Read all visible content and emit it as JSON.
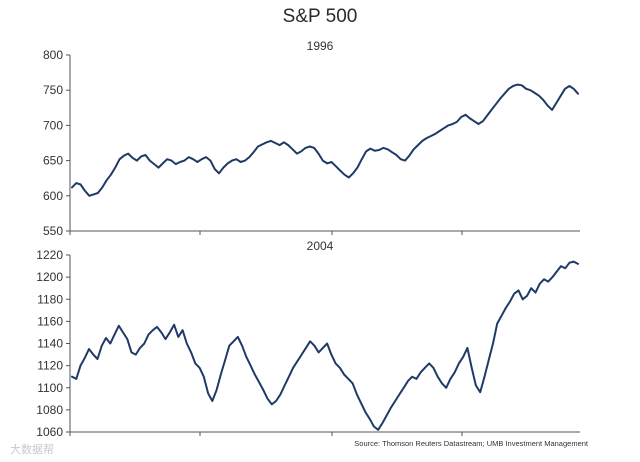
{
  "chart_data": [
    {
      "type": "line",
      "title": "S&P 500",
      "subtitle": "1996",
      "ylim": [
        550,
        800
      ],
      "yticks": [
        550,
        600,
        650,
        700,
        750,
        800
      ],
      "series": [
        {
          "name": "S&P 500 1996",
          "color": "#1f3a66",
          "values": [
            612,
            618,
            616,
            607,
            600,
            602,
            604,
            612,
            622,
            630,
            640,
            652,
            657,
            660,
            654,
            650,
            656,
            658,
            650,
            645,
            640,
            646,
            652,
            650,
            645,
            648,
            650,
            655,
            652,
            648,
            652,
            655,
            650,
            638,
            632,
            640,
            646,
            650,
            652,
            648,
            650,
            655,
            662,
            670,
            673,
            676,
            678,
            675,
            672,
            676,
            672,
            666,
            660,
            663,
            668,
            670,
            668,
            660,
            650,
            646,
            648,
            642,
            636,
            630,
            626,
            632,
            640,
            652,
            663,
            667,
            664,
            665,
            668,
            666,
            662,
            658,
            652,
            650,
            657,
            666,
            672,
            678,
            682,
            685,
            688,
            692,
            696,
            700,
            702,
            705,
            712,
            715,
            710,
            706,
            702,
            706,
            714,
            722,
            730,
            738,
            745,
            752,
            756,
            758,
            757,
            752,
            750,
            746,
            742,
            736,
            728,
            722,
            732,
            742,
            752,
            756,
            752,
            745
          ]
        }
      ]
    },
    {
      "type": "line",
      "subtitle": "2004",
      "ylim": [
        1060,
        1220
      ],
      "yticks": [
        1060,
        1080,
        1100,
        1120,
        1140,
        1160,
        1180,
        1200,
        1220
      ],
      "series": [
        {
          "name": "S&P 500 2004",
          "color": "#1f3a66",
          "values": [
            1110,
            1108,
            1120,
            1127,
            1135,
            1130,
            1126,
            1138,
            1145,
            1140,
            1148,
            1156,
            1150,
            1144,
            1132,
            1130,
            1136,
            1140,
            1148,
            1152,
            1155,
            1150,
            1144,
            1150,
            1157,
            1146,
            1152,
            1140,
            1132,
            1122,
            1118,
            1110,
            1095,
            1088,
            1098,
            1112,
            1125,
            1138,
            1142,
            1146,
            1138,
            1128,
            1120,
            1112,
            1105,
            1098,
            1090,
            1085,
            1088,
            1094,
            1102,
            1110,
            1118,
            1124,
            1130,
            1136,
            1142,
            1138,
            1132,
            1136,
            1140,
            1130,
            1122,
            1118,
            1112,
            1108,
            1104,
            1094,
            1086,
            1078,
            1072,
            1065,
            1062,
            1068,
            1075,
            1082,
            1088,
            1094,
            1100,
            1106,
            1110,
            1108,
            1114,
            1118,
            1122,
            1118,
            1110,
            1104,
            1100,
            1108,
            1114,
            1122,
            1128,
            1136,
            1118,
            1102,
            1096,
            1110,
            1125,
            1140,
            1158,
            1165,
            1172,
            1178,
            1185,
            1188,
            1180,
            1183,
            1190,
            1186,
            1194,
            1198,
            1196,
            1200,
            1205,
            1210,
            1208,
            1213,
            1214,
            1212
          ]
        }
      ]
    }
  ],
  "source": "Source: Thomson Reuters Datastream; UMB Investment Management",
  "watermark": "大数据帮"
}
